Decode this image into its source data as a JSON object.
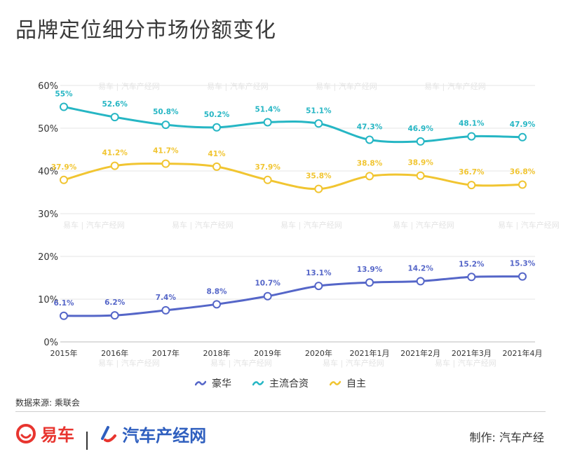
{
  "title": "品牌定位细分市场份额变化",
  "source": "数据来源: 乘联会",
  "maker": "制作:  汽车产经",
  "logos": {
    "yiche": "易车",
    "chanjing": "汽车产经网"
  },
  "watermark": "易车 | 汽车产经网",
  "colors": {
    "luxury": "#5566c8",
    "mainstream": "#26b6c4",
    "domestic": "#f1c531",
    "yiche_red": "#e8352f",
    "chanjing_blue": "#2f5fbf"
  },
  "chart_data": {
    "type": "line",
    "title": "品牌定位细分市场份额变化",
    "categories": [
      "2015年",
      "2016年",
      "2017年",
      "2018年",
      "2019年",
      "2020年",
      "2021年1月",
      "2021年2月",
      "2021年3月",
      "2021年4月"
    ],
    "ylim": [
      0,
      60
    ],
    "yticks": [
      "0%",
      "10%",
      "20%",
      "30%",
      "40%",
      "50%",
      "60%"
    ],
    "grid": true,
    "legend_position": "bottom",
    "series": [
      {
        "name": "豪华",
        "color": "#5566c8",
        "values": [
          6.1,
          6.2,
          7.4,
          8.8,
          10.7,
          13.1,
          13.9,
          14.2,
          15.2,
          15.3
        ],
        "labels": [
          "6.1%",
          "6.2%",
          "7.4%",
          "8.8%",
          "10.7%",
          "13.1%",
          "13.9%",
          "14.2%",
          "15.2%",
          "15.3%"
        ]
      },
      {
        "name": "主流合资",
        "color": "#26b6c4",
        "values": [
          55,
          52.6,
          50.8,
          50.2,
          51.4,
          51.1,
          47.3,
          46.9,
          48.1,
          47.9
        ],
        "labels": [
          "55%",
          "52.6%",
          "50.8%",
          "50.2%",
          "51.4%",
          "51.1%",
          "47.3%",
          "46.9%",
          "48.1%",
          "47.9%"
        ]
      },
      {
        "name": "自主",
        "color": "#f1c531",
        "values": [
          37.9,
          41.2,
          41.7,
          41,
          37.9,
          35.8,
          38.8,
          38.9,
          36.7,
          36.8
        ],
        "labels": [
          "37.9%",
          "41.2%",
          "41.7%",
          "41%",
          "37.9%",
          "35.8%",
          "38.8%",
          "38.9%",
          "36.7%",
          "36.8%"
        ]
      }
    ]
  }
}
